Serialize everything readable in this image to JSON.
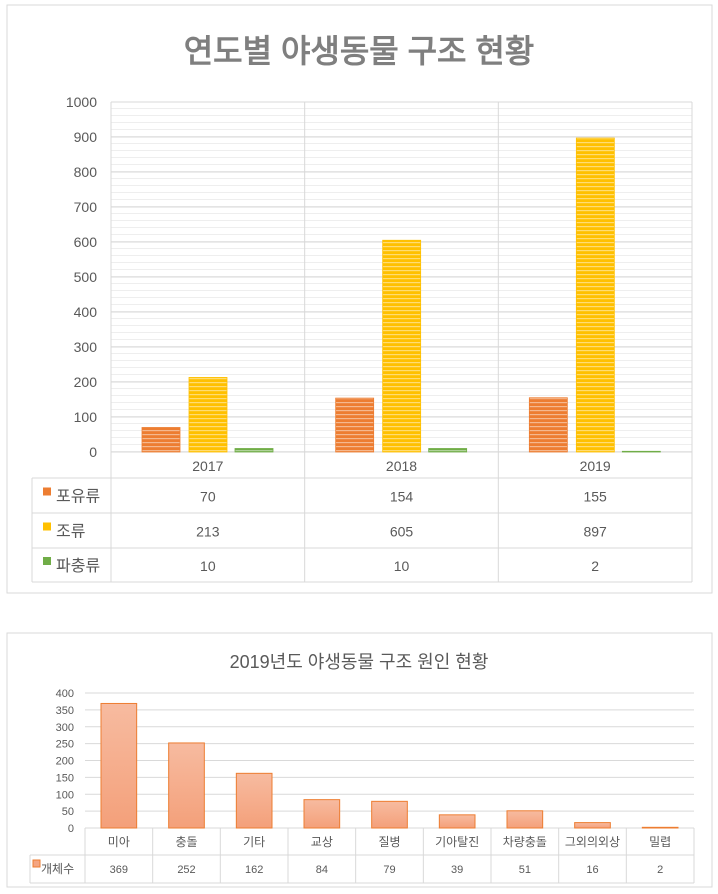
{
  "chart_data": [
    {
      "type": "bar",
      "title": "연도별 야생동물 구조 현황",
      "categories": [
        "2017",
        "2018",
        "2019"
      ],
      "series": [
        {
          "name": "포유류",
          "values": [
            70,
            154,
            155
          ],
          "color": "#ED7D31"
        },
        {
          "name": "조류",
          "values": [
            213,
            605,
            897
          ],
          "color": "#FFC000"
        },
        {
          "name": "파충류",
          "values": [
            10,
            10,
            2
          ],
          "color": "#70AD47"
        }
      ],
      "yticks": [
        "0",
        "100",
        "200",
        "300",
        "400",
        "500",
        "600",
        "700",
        "800",
        "900",
        "1000"
      ],
      "ylim": [
        0,
        1000
      ],
      "grid": true,
      "legend": "data-table"
    },
    {
      "type": "bar",
      "title": "2019년도 야생동물 구조 원인 현황",
      "categories": [
        "미아",
        "충돌",
        "기타",
        "교상",
        "질병",
        "기아탈진",
        "차량충돌",
        "그외의외상",
        "밀렵"
      ],
      "series": [
        {
          "name": "개체수",
          "values": [
            369,
            252,
            162,
            84,
            79,
            39,
            51,
            16,
            2
          ],
          "color": "#F4A582"
        }
      ],
      "yticks": [
        "0",
        "50",
        "100",
        "150",
        "200",
        "250",
        "300",
        "350",
        "400"
      ],
      "ylim": [
        0,
        400
      ],
      "grid": true,
      "legend": "data-table"
    }
  ]
}
